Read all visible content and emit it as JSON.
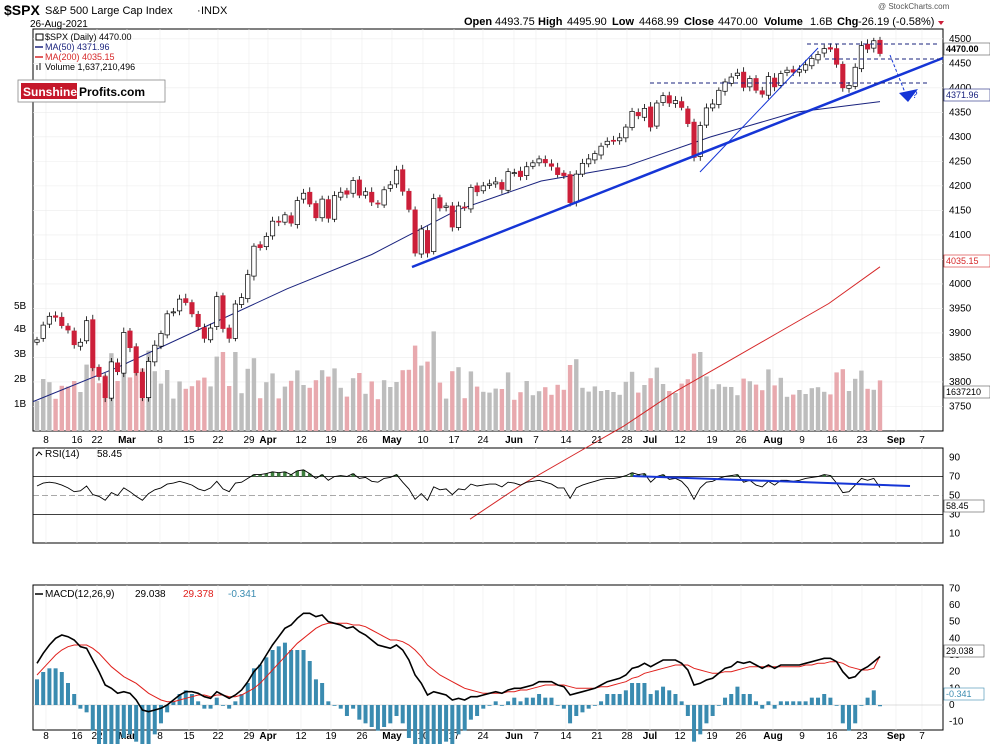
{
  "header": {
    "symbol": "$SPX",
    "name": "S&P 500 Large Cap Index",
    "exchange": "INDX",
    "date": "26-Aug-2021",
    "open_label": "Open",
    "open": "4493.75",
    "high_label": "High",
    "high": "4495.90",
    "low_label": "Low",
    "low": "4468.99",
    "close_label": "Close",
    "close": "4470.00",
    "volume_label": "Volume",
    "volume": "1.6B",
    "chg_label": "Chg",
    "chg": "-26.19 (-0.58%)",
    "watermark": "@ StockCharts.com"
  },
  "legend": {
    "price": "$SPX (Daily) 4470.00",
    "ma50": "MA(50) 4371.96",
    "ma200": "MA(200) 4035.15",
    "volume": "Volume 1,637,210,496"
  },
  "logo": {
    "part1": "Sunshine",
    "part2": "Profits.com"
  },
  "colors": {
    "up": "#ffffff",
    "down": "#cc1f39",
    "ma50": "#1a237e",
    "ma200": "#d62728",
    "trend": "#1535d6",
    "vol_up": "#bdbdbd",
    "vol_down": "#e8a9ae",
    "macd": "#000000",
    "signal": "#e0201c",
    "hist": "#3a8bb0",
    "rsi_fill": "#3f7f3f"
  },
  "chart_data": [
    {
      "type": "candlestick",
      "title": "$SPX (Daily)",
      "ylim": [
        3700,
        4520
      ],
      "y_ticks": [
        3750,
        3800,
        3850,
        3900,
        3950,
        4000,
        4050,
        4100,
        4150,
        4200,
        4250,
        4300,
        4350,
        4400,
        4450,
        4500
      ],
      "price_labels": {
        "last": "4470.00",
        "ma50": "4371.96",
        "ma200": "4035.15",
        "volume": "1637210"
      },
      "volume_ticks": [
        "1B",
        "2B",
        "3B",
        "4B",
        "5B"
      ],
      "x_tick_labels": [
        "8",
        "16",
        "22",
        "Mar",
        "8",
        "15",
        "22",
        "29",
        "Apr",
        "12",
        "19",
        "26",
        "May",
        "10",
        "17",
        "24",
        "Jun",
        "7",
        "14",
        "21",
        "28",
        "Jul",
        "12",
        "19",
        "26",
        "Aug",
        "9",
        "16",
        "23",
        "Sep",
        "7"
      ],
      "x_tick_months": [
        "Mar",
        "Apr",
        "May",
        "Jun",
        "Jul",
        "Aug",
        "Sep"
      ],
      "close_series": [
        3886,
        3916,
        3934,
        3932,
        3915,
        3906,
        3876,
        3881,
        3925,
        3829,
        3811,
        3768,
        3841,
        3821,
        3901,
        3870,
        3819,
        3768,
        3842,
        3875,
        3899,
        3939,
        3943,
        3969,
        3962,
        3939,
        3913,
        3889,
        3910,
        3974,
        3909,
        3889,
        3959,
        3972,
        4019,
        4077,
        4074,
        4097,
        4128,
        4127,
        4141,
        4124,
        4170,
        4185,
        4163,
        4135,
        4173,
        4134,
        4180,
        4187,
        4183,
        4211,
        4181,
        4188,
        4167,
        4164,
        4192,
        4202,
        4232,
        4189,
        4152,
        4063,
        4112,
        4063,
        4174,
        4155,
        4159,
        4116,
        4159,
        4156,
        4197,
        4188,
        4200,
        4204,
        4208,
        4193,
        4229,
        4227,
        4219,
        4239,
        4247,
        4255,
        4247,
        4240,
        4223,
        4221,
        4166,
        4224,
        4246,
        4255,
        4266,
        4281,
        4291,
        4291,
        4298,
        4320,
        4352,
        4343,
        4358,
        4320,
        4369,
        4384,
        4369,
        4374,
        4360,
        4327,
        4258,
        4323,
        4359,
        4367,
        4395,
        4412,
        4422,
        4430,
        4401,
        4419,
        4395,
        4387,
        4423,
        4402,
        4429,
        4436,
        4432,
        4437,
        4447,
        4460,
        4468,
        4480,
        4479,
        4448,
        4400,
        4405,
        4442,
        4486,
        4479,
        4496,
        4470
      ],
      "ma50_series": [
        3760,
        3830,
        3910,
        3990,
        4060,
        4150,
        4210,
        4240,
        4300,
        4350,
        4372
      ],
      "ma200_series": [
        3520,
        3590,
        3650,
        3710,
        3780,
        3840,
        3900,
        3960,
        4035
      ],
      "annotations": [
        "?"
      ]
    },
    {
      "type": "line",
      "title": "RSI(14)",
      "series": [
        {
          "name": "RSI(14)",
          "last": "58.45"
        }
      ],
      "y_ticks": [
        10,
        30,
        50,
        70,
        90
      ],
      "ylim": [
        0,
        100
      ],
      "values": [
        60,
        63,
        64,
        63,
        61,
        58,
        54,
        55,
        60,
        51,
        49,
        45,
        53,
        50,
        58,
        54,
        49,
        45,
        52,
        56,
        58,
        62,
        63,
        65,
        63,
        61,
        57,
        55,
        58,
        65,
        57,
        54,
        63,
        64,
        68,
        72,
        72,
        73,
        75,
        74,
        75,
        72,
        76,
        77,
        73,
        68,
        72,
        66,
        70,
        71,
        70,
        73,
        68,
        69,
        65,
        64,
        68,
        69,
        72,
        64,
        57,
        46,
        52,
        45,
        59,
        56,
        57,
        51,
        57,
        56,
        62,
        60,
        61,
        62,
        62,
        59,
        64,
        63,
        61,
        64,
        65,
        66,
        64,
        62,
        58,
        58,
        47,
        58,
        61,
        63,
        65,
        67,
        68,
        68,
        69,
        71,
        74,
        72,
        73,
        64,
        70,
        72,
        67,
        68,
        65,
        58,
        46,
        58,
        64,
        65,
        68,
        70,
        71,
        72,
        64,
        66,
        61,
        59,
        65,
        61,
        66,
        66,
        65,
        66,
        68,
        69,
        70,
        72,
        71,
        63,
        53,
        54,
        61,
        68,
        66,
        68,
        58.45
      ]
    },
    {
      "type": "line",
      "title": "MACD(12,26,9)",
      "series": [
        {
          "name": "MACD",
          "last": "29.038"
        },
        {
          "name": "Signal",
          "last": "29.378"
        },
        {
          "name": "Histogram",
          "last": "-0.341"
        }
      ],
      "y_ticks": [
        -10,
        0,
        10,
        20,
        30,
        40,
        50,
        60,
        70
      ],
      "ylim": [
        -15,
        72
      ],
      "macd": [
        25,
        31,
        36,
        40,
        42,
        41,
        39,
        35,
        34,
        27,
        20,
        12,
        10,
        7,
        8,
        7,
        3,
        -3,
        -4,
        -3,
        -2,
        0,
        3,
        6,
        8,
        8,
        7,
        5,
        4,
        8,
        6,
        4,
        6,
        9,
        14,
        20,
        24,
        30,
        36,
        41,
        46,
        48,
        52,
        55,
        55,
        53,
        54,
        50,
        49,
        48,
        46,
        47,
        44,
        42,
        39,
        36,
        35,
        34,
        36,
        33,
        27,
        18,
        13,
        6,
        8,
        7,
        6,
        3,
        4,
        3,
        5,
        5,
        6,
        7,
        8,
        7,
        9,
        10,
        10,
        11,
        12,
        14,
        14,
        14,
        12,
        11,
        6,
        7,
        8,
        9,
        10,
        12,
        14,
        15,
        16,
        18,
        22,
        23,
        25,
        23,
        25,
        27,
        27,
        27,
        25,
        21,
        12,
        13,
        15,
        16,
        19,
        22,
        23,
        26,
        25,
        26,
        24,
        22,
        24,
        22,
        24,
        24,
        24,
        24,
        25,
        26,
        27,
        28,
        28,
        26,
        20,
        16,
        17,
        21,
        23,
        26,
        29.038
      ],
      "signal": [
        18,
        22,
        26,
        30,
        33,
        35,
        36,
        36,
        36,
        34,
        31,
        27,
        23,
        20,
        17,
        15,
        13,
        10,
        7,
        5,
        3,
        2,
        2,
        3,
        4,
        5,
        6,
        6,
        5,
        6,
        6,
        5,
        5,
        6,
        8,
        10,
        13,
        17,
        21,
        25,
        29,
        33,
        37,
        40,
        43,
        46,
        48,
        49,
        49,
        49,
        49,
        48,
        48,
        47,
        45,
        43,
        41,
        39,
        39,
        38,
        36,
        33,
        29,
        24,
        21,
        18,
        16,
        14,
        12,
        10,
        9,
        8,
        7,
        7,
        7,
        7,
        8,
        8,
        9,
        9,
        10,
        11,
        12,
        12,
        12,
        12,
        11,
        10,
        10,
        10,
        10,
        11,
        11,
        12,
        13,
        14,
        16,
        17,
        19,
        20,
        21,
        22,
        23,
        24,
        24,
        24,
        22,
        21,
        20,
        19,
        19,
        20,
        20,
        21,
        22,
        23,
        23,
        23,
        23,
        23,
        23,
        23,
        23,
        23,
        24,
        24,
        25,
        25,
        26,
        26,
        25,
        23,
        22,
        21,
        21,
        22,
        29.378
      ]
    }
  ]
}
